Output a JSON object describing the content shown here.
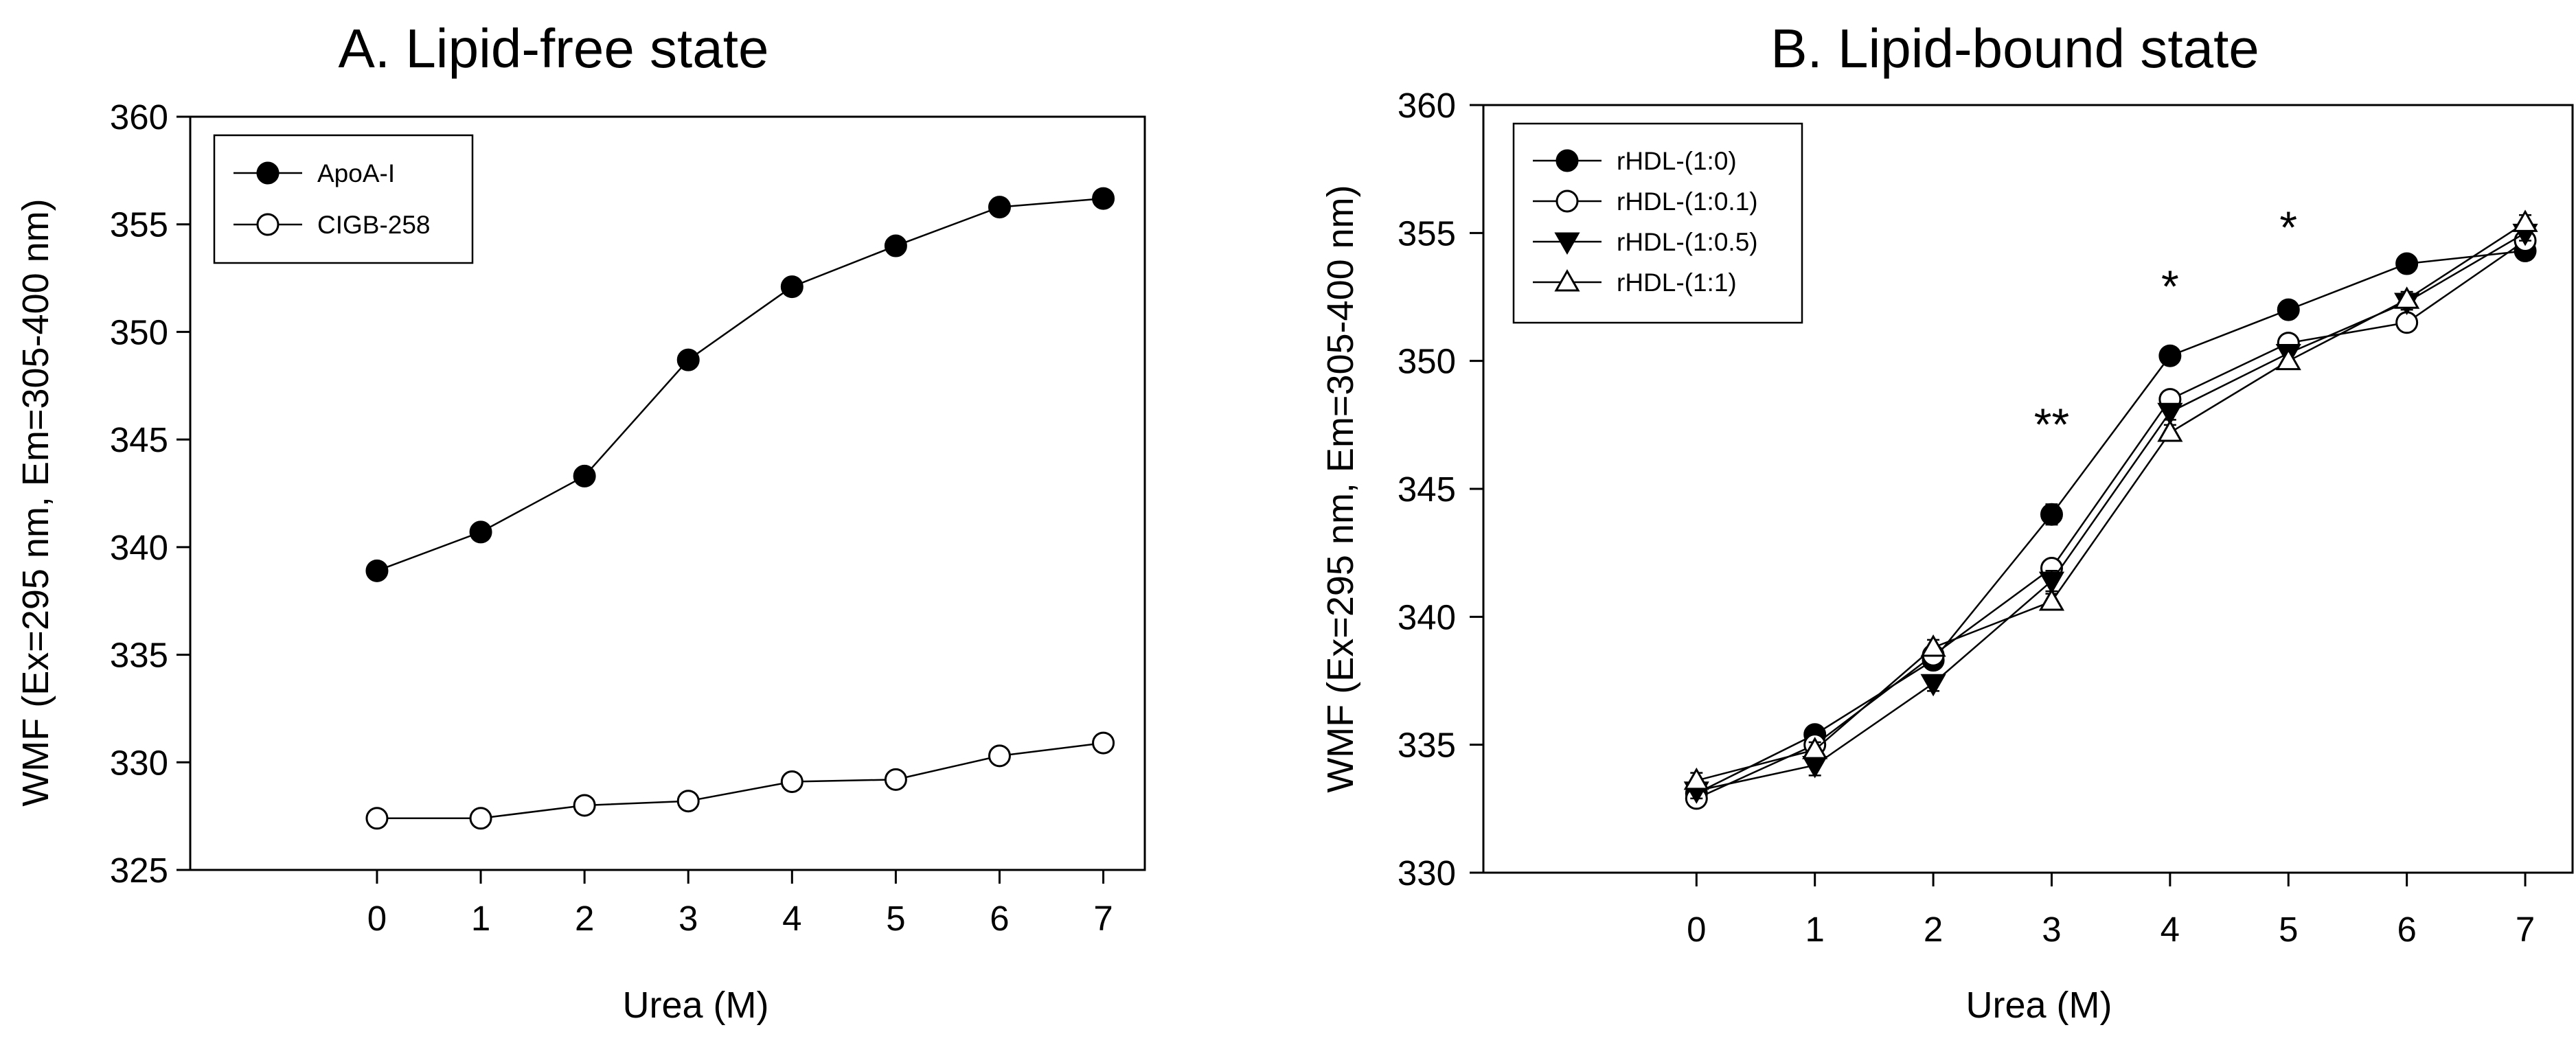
{
  "figure": {
    "panels": [
      "panel_a",
      "panel_b"
    ]
  },
  "chart_data": [
    {
      "id": "panel_a",
      "type": "line",
      "title": "A. Lipid-free state",
      "xlabel": "Urea (M)",
      "ylabel": "WMF (Ex=295 nm, Em=305-400 nm)",
      "x": [
        0,
        1,
        2,
        3,
        4,
        5,
        6,
        7
      ],
      "xlim": [
        -1.8,
        7.4
      ],
      "ylim": [
        325,
        360
      ],
      "yticks": [
        325,
        330,
        335,
        340,
        345,
        350,
        355,
        360
      ],
      "xticks": [
        0,
        1,
        2,
        3,
        4,
        5,
        6,
        7
      ],
      "legend_position": "top-left",
      "series": [
        {
          "name": "ApoA-I",
          "marker": "filled-circle",
          "values": [
            338.9,
            340.7,
            343.3,
            348.7,
            352.1,
            354.0,
            355.8,
            356.2
          ],
          "errors": [
            0.2,
            0.2,
            0.3,
            0.3,
            0.4,
            0.3,
            0.3,
            0.3
          ]
        },
        {
          "name": "CIGB-258",
          "marker": "open-circle",
          "values": [
            327.4,
            327.4,
            328.0,
            328.2,
            329.1,
            329.2,
            330.3,
            330.9
          ],
          "errors": [
            0.2,
            0.2,
            0.2,
            0.2,
            0.2,
            0.2,
            0.2,
            0.2
          ]
        }
      ]
    },
    {
      "id": "panel_b",
      "type": "line",
      "title": "B. Lipid-bound state",
      "xlabel": "Urea (M)",
      "ylabel": "WMF (Ex=295 nm, Em=305-400 nm)",
      "x": [
        0,
        1,
        2,
        3,
        4,
        5,
        6,
        7
      ],
      "xlim": [
        -1.8,
        7.4
      ],
      "ylim": [
        330,
        360
      ],
      "yticks": [
        330,
        335,
        340,
        345,
        350,
        355,
        360
      ],
      "xticks": [
        0,
        1,
        2,
        3,
        4,
        5,
        6,
        7
      ],
      "legend_position": "top-left",
      "series": [
        {
          "name": "rHDL-(1:0)",
          "marker": "filled-circle",
          "values": [
            333.1,
            335.4,
            338.3,
            344.0,
            350.2,
            352.0,
            353.8,
            354.3
          ],
          "errors": [
            0.3,
            0.3,
            0.3,
            0.4,
            0.3,
            0.3,
            0.2,
            0.3
          ]
        },
        {
          "name": "rHDL-(1:0.1)",
          "marker": "open-circle",
          "values": [
            332.9,
            335.0,
            338.5,
            341.9,
            348.5,
            350.7,
            351.5,
            354.7
          ],
          "errors": [
            0.3,
            0.3,
            0.3,
            0.3,
            0.3,
            0.2,
            0.2,
            0.3
          ]
        },
        {
          "name": "rHDL-(1:0.5)",
          "marker": "filled-triangle-down",
          "values": [
            333.2,
            334.2,
            337.4,
            341.4,
            348.0,
            350.3,
            352.3,
            355.0
          ],
          "errors": [
            0.3,
            0.4,
            0.3,
            0.4,
            0.3,
            0.3,
            0.3,
            0.3
          ]
        },
        {
          "name": "rHDL-(1:1)",
          "marker": "open-triangle-up",
          "values": [
            333.6,
            334.8,
            338.8,
            340.6,
            347.2,
            350.0,
            352.4,
            355.4
          ],
          "errors": [
            0.3,
            0.3,
            0.3,
            0.3,
            0.3,
            0.3,
            0.3,
            0.3
          ]
        }
      ],
      "annotations": [
        {
          "text": "**",
          "x": 3,
          "y": 346.9
        },
        {
          "text": "*",
          "x": 4,
          "y": 352.3
        },
        {
          "text": "*",
          "x": 5,
          "y": 354.6
        }
      ]
    }
  ]
}
